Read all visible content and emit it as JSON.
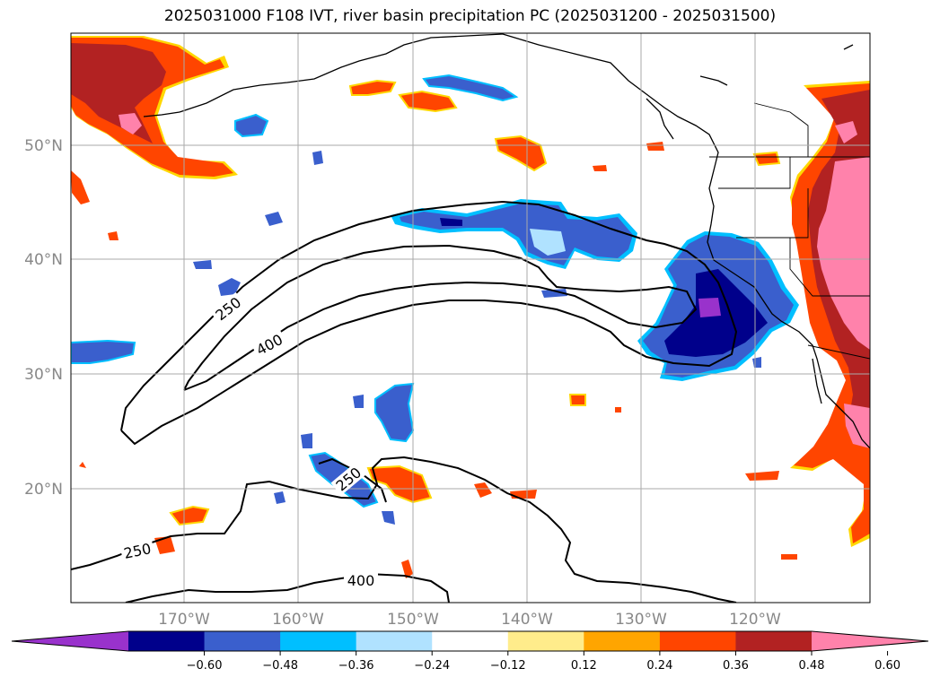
{
  "title": "2025031000 F108 IVT, river basin precipitation PC (2025031200 - 2025031500)",
  "map": {
    "lat_labels": [
      "50°N",
      "40°N",
      "30°N",
      "20°N"
    ],
    "lon_labels": [
      "170°W",
      "160°W",
      "150°W",
      "140°W",
      "130°W",
      "120°W"
    ],
    "contour_labels": [
      "250",
      "400",
      "250",
      "250",
      "400"
    ]
  },
  "colorbar": {
    "ticks": [
      "−0.60",
      "−0.48",
      "−0.36",
      "−0.24",
      "−0.12",
      "0.12",
      "0.24",
      "0.36",
      "0.48",
      "0.60"
    ],
    "colors": [
      "#9932cc",
      "#00008b",
      "#3a5fcd",
      "#00bfff",
      "#b0e2ff",
      "#ffffff",
      "#ffec8b",
      "#ffa500",
      "#ff4500",
      "#b22222",
      "#ff82ab"
    ]
  }
}
